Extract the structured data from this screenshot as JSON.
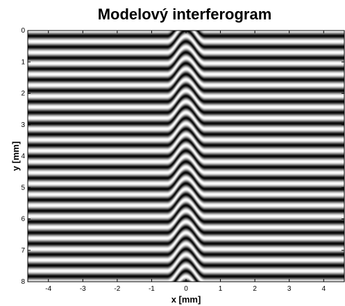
{
  "chart_data": {
    "type": "heatmap",
    "title": "Modelový interferogram",
    "xlabel": "x [mm]",
    "ylabel": "y [mm]",
    "colormap": "gray",
    "xlim": [
      -4.6,
      4.6
    ],
    "ylim": [
      0,
      8
    ],
    "y_axis_direction": "down",
    "xticks": [
      -4,
      -3,
      -2,
      -1,
      0,
      1,
      2,
      3,
      4
    ],
    "yticks": [
      0,
      1,
      2,
      3,
      4,
      5,
      6,
      7,
      8
    ],
    "grid": false,
    "legend": "none",
    "pattern": {
      "orientation": "horizontal",
      "fringe_period_y_mm": 0.348,
      "bump_center_x_mm": 0,
      "bump_half_width_x_mm": 0.55,
      "bump_height_y_mm": 0.52
    }
  }
}
